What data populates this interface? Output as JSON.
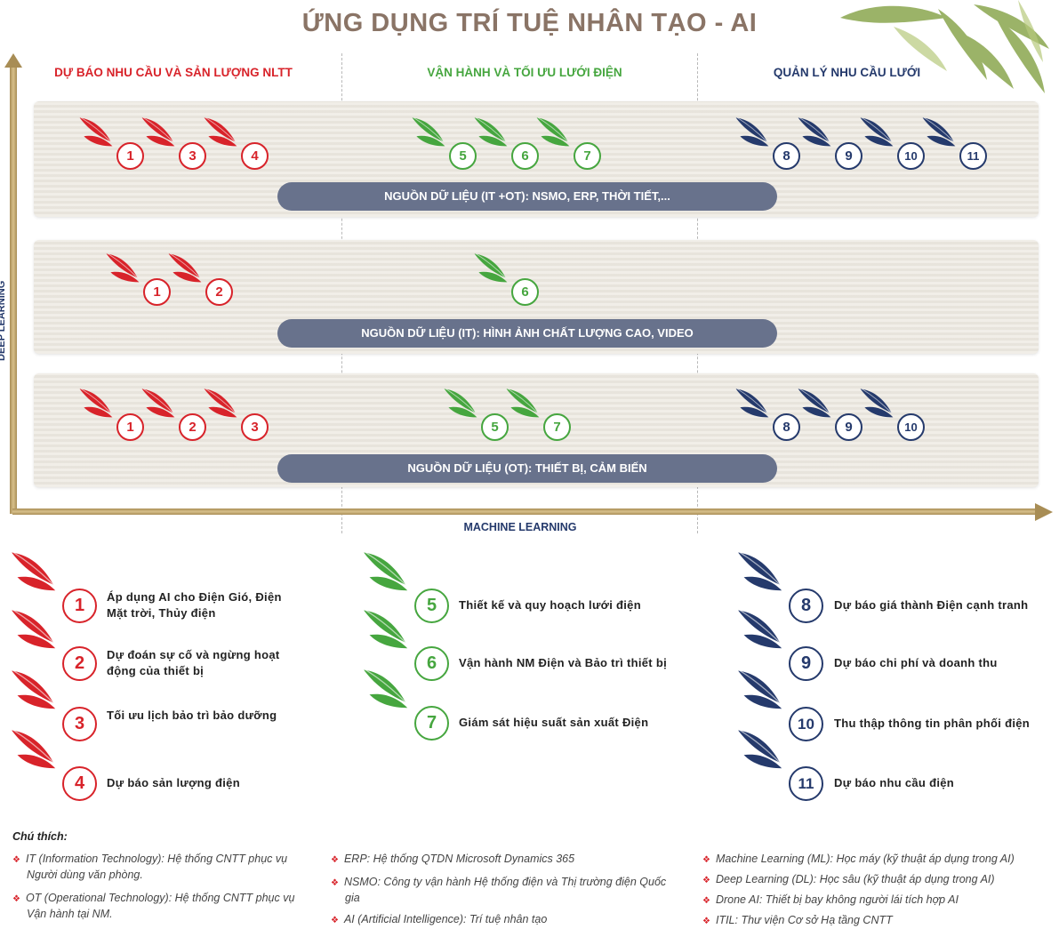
{
  "title": "ỨNG DỤNG TRÍ TUỆ NHÂN TẠO - AI",
  "colors": {
    "red": "#d8232a",
    "green": "#46a63f",
    "navy": "#253a6c",
    "source_bar": "#68728c"
  },
  "columns": [
    {
      "label": "DỰ BÁO NHU CẦU VÀ SẢN LƯỢNG NLTT",
      "color": "#d8232a"
    },
    {
      "label": "VẬN HÀNH VÀ TỐI ƯU LƯỚI ĐIỆN",
      "color": "#46a63f"
    },
    {
      "label": "QUẢN LÝ NHU CẦU LƯỚI",
      "color": "#253a6c"
    }
  ],
  "axes": {
    "x_label": "MACHINE LEARNING",
    "y_label": "DEEP LEARNING"
  },
  "rows": [
    {
      "source": "NGUỒN DỮ LIỆU (IT +OT): NSMO, ERP, THỜI TIẾT,...",
      "groups": [
        [
          "1",
          "3",
          "4"
        ],
        [
          "5",
          "6",
          "7"
        ],
        [
          "8",
          "9",
          "10",
          "11"
        ]
      ]
    },
    {
      "source": "NGUỒN DỮ LIỆU (IT): HÌNH ẢNH CHẤT LƯỢNG CAO, VIDEO",
      "groups": [
        [
          "1",
          "2"
        ],
        [
          "6"
        ],
        []
      ]
    },
    {
      "source": "NGUỒN DỮ LIỆU (OT): THIẾT BỊ, CẢM BIẾN",
      "groups": [
        [
          "1",
          "2",
          "3"
        ],
        [
          "5",
          "7"
        ],
        [
          "8",
          "9",
          "10"
        ]
      ]
    }
  ],
  "legend": [
    [
      {
        "num": "1",
        "text": "Áp dụng AI cho Điện Gió, Điện Mặt trời, Thủy điện"
      },
      {
        "num": "2",
        "text": "Dự đoán sự cố và ngừng hoạt động của thiết bị"
      },
      {
        "num": "3",
        "text": "Tối ưu lịch bảo trì bảo dưỡng"
      },
      {
        "num": "4",
        "text": "Dự báo sản lượng điện"
      }
    ],
    [
      {
        "num": "5",
        "text": "Thiết kế và quy hoạch lưới điện"
      },
      {
        "num": "6",
        "text": "Vận hành NM Điện và Bảo trì thiết bị"
      },
      {
        "num": "7",
        "text": "Giám sát hiệu suất sản xuất Điện"
      }
    ],
    [
      {
        "num": "8",
        "text": "Dự báo giá thành Điện cạnh tranh"
      },
      {
        "num": "9",
        "text": "Dự báo chi phí và doanh thu"
      },
      {
        "num": "10",
        "text": "Thu thập thông tin phân phối điện"
      },
      {
        "num": "11",
        "text": "Dự báo nhu cầu điện"
      }
    ]
  ],
  "notes": {
    "title": "Chú thích:",
    "columns": [
      [
        "IT (Information Technology): Hệ thống CNTT phục vụ Người dùng văn phòng.",
        "OT (Operational Technology): Hệ thống CNTT phục vụ Vận hành tại NM."
      ],
      [
        "ERP: Hệ thống QTDN Microsoft Dynamics 365",
        "NSMO: Công ty vận hành Hệ thống điện và Thị trường điện Quốc gia",
        "AI (Artificial Intelligence): Trí tuệ nhân tạo"
      ],
      [
        "Machine Learning (ML): Học máy (kỹ thuật áp dụng trong AI)",
        "Deep Learning (DL): Học sâu (kỹ thuật áp dụng trong AI)",
        "Drone AI: Thiết bị bay không người lái tích hợp AI",
        "ITIL: Thư viện Cơ sở Hạ tầng CNTT"
      ]
    ]
  }
}
